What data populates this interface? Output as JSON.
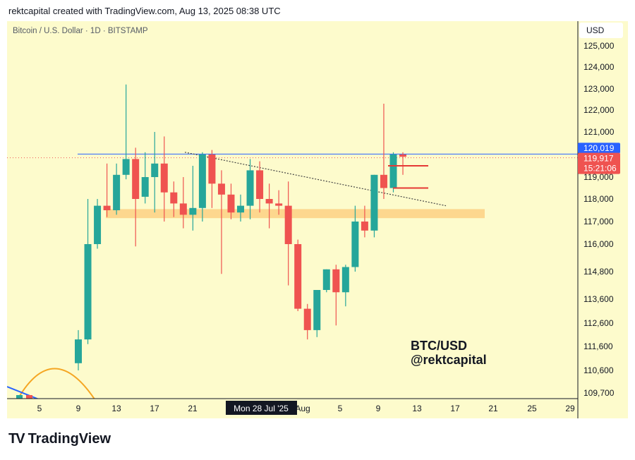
{
  "header": {
    "attribution": "rektcapital created with TradingView.com, Aug 13, 2025 08:38 UTC"
  },
  "chart_header": {
    "symbol_line": "Bitcoin / U.S. Dollar · 1D · BITSTAMP",
    "currency": "USD"
  },
  "watermark": {
    "line1": "BTC/USD",
    "line2": "@rektcapital"
  },
  "footer": {
    "brand": "TradingView"
  },
  "colors": {
    "up": "#26a69a",
    "down": "#ef5350",
    "background": "#fdfbcc",
    "support_zone": "#fdd58a",
    "level_line": "#2962ff",
    "price_tag_current": "#ef5350",
    "price_tag_level": "#2962ff",
    "arc": "#f5a623"
  },
  "chart_data": {
    "type": "candlestick",
    "title": "Bitcoin / U.S. Dollar · 1D · BITSTAMP",
    "y_axis_labels": [
      "125,000",
      "124,000",
      "123,000",
      "122,000",
      "121,000",
      "120,019",
      "119,917",
      "119,000",
      "118,000",
      "117,000",
      "116,000",
      "114,800",
      "113,600",
      "112,600",
      "111,600",
      "110,600",
      "109,700"
    ],
    "x_axis_labels": [
      "5",
      "9",
      "13",
      "17",
      "21",
      "Mon 28 Jul '25",
      "Aug",
      "5",
      "9",
      "13",
      "17",
      "21",
      "25",
      "29"
    ],
    "level_price": 120019,
    "current_price": 119917,
    "countdown": "15:21:06",
    "support_zone": [
      117150,
      117550
    ],
    "candles": [
      {
        "date": "Jul 10",
        "o": 110900,
        "h": 112300,
        "l": 110600,
        "c": 111900
      },
      {
        "date": "Jul 11",
        "o": 111900,
        "h": 118000,
        "l": 111700,
        "c": 116000
      },
      {
        "date": "Jul 12",
        "o": 116000,
        "h": 118000,
        "l": 115800,
        "c": 117700
      },
      {
        "date": "Jul 13",
        "o": 117700,
        "h": 119600,
        "l": 117200,
        "c": 117500
      },
      {
        "date": "Jul 14",
        "o": 117500,
        "h": 119600,
        "l": 117300,
        "c": 119100
      },
      {
        "date": "Jul 15",
        "o": 119100,
        "h": 123200,
        "l": 118900,
        "c": 119800
      },
      {
        "date": "Jul 16",
        "o": 119800,
        "h": 120300,
        "l": 115900,
        "c": 118000
      },
      {
        "date": "Jul 17",
        "o": 118100,
        "h": 120100,
        "l": 117800,
        "c": 119000
      },
      {
        "date": "Jul 18",
        "o": 119000,
        "h": 121000,
        "l": 117400,
        "c": 119600
      },
      {
        "date": "Jul 19",
        "o": 119600,
        "h": 120800,
        "l": 117000,
        "c": 118300
      },
      {
        "date": "Jul 20",
        "o": 118300,
        "h": 118800,
        "l": 117200,
        "c": 117800
      },
      {
        "date": "Jul 21",
        "o": 117800,
        "h": 119000,
        "l": 116700,
        "c": 117300
      },
      {
        "date": "Jul 22",
        "o": 117300,
        "h": 119500,
        "l": 116600,
        "c": 117600
      },
      {
        "date": "Jul 23",
        "o": 117600,
        "h": 120100,
        "l": 117000,
        "c": 120000
      },
      {
        "date": "Jul 24",
        "o": 120000,
        "h": 120200,
        "l": 117600,
        "c": 118700
      },
      {
        "date": "Jul 25",
        "o": 118700,
        "h": 119300,
        "l": 114700,
        "c": 118200
      },
      {
        "date": "Jul 26",
        "o": 118200,
        "h": 118700,
        "l": 117100,
        "c": 117400
      },
      {
        "date": "Jul 27",
        "o": 117400,
        "h": 118200,
        "l": 117000,
        "c": 117700
      },
      {
        "date": "Jul 28",
        "o": 117700,
        "h": 119800,
        "l": 117100,
        "c": 119300
      },
      {
        "date": "Jul 29",
        "o": 119300,
        "h": 119700,
        "l": 117400,
        "c": 118000
      },
      {
        "date": "Jul 30",
        "o": 118000,
        "h": 118700,
        "l": 116700,
        "c": 117800
      },
      {
        "date": "Jul 31",
        "o": 117800,
        "h": 118400,
        "l": 117300,
        "c": 117700
      },
      {
        "date": "Aug 1",
        "o": 117700,
        "h": 118800,
        "l": 114200,
        "c": 116000
      },
      {
        "date": "Aug 2",
        "o": 116000,
        "h": 116200,
        "l": 113100,
        "c": 113200
      },
      {
        "date": "Aug 3",
        "o": 113200,
        "h": 113400,
        "l": 111900,
        "c": 112300
      },
      {
        "date": "Aug 4",
        "o": 112300,
        "h": 114000,
        "l": 112000,
        "c": 114000
      },
      {
        "date": "Aug 5",
        "o": 114000,
        "h": 114900,
        "l": 113900,
        "c": 114900
      },
      {
        "date": "Aug 6",
        "o": 114900,
        "h": 115100,
        "l": 112500,
        "c": 113900
      },
      {
        "date": "Aug 7",
        "o": 113900,
        "h": 115100,
        "l": 113300,
        "c": 115000
      },
      {
        "date": "Aug 8",
        "o": 115000,
        "h": 117700,
        "l": 114800,
        "c": 117000
      },
      {
        "date": "Aug 9",
        "o": 117000,
        "h": 117700,
        "l": 116300,
        "c": 116600
      },
      {
        "date": "Aug 10",
        "o": 116600,
        "h": 119100,
        "l": 116300,
        "c": 119100
      },
      {
        "date": "Aug 11",
        "o": 119100,
        "h": 122300,
        "l": 118000,
        "c": 118500
      },
      {
        "date": "Aug 12",
        "o": 118500,
        "h": 120100,
        "l": 118300,
        "c": 120000
      },
      {
        "date": "Aug 13",
        "o": 120000,
        "h": 120100,
        "l": 119100,
        "c": 119900
      }
    ]
  }
}
